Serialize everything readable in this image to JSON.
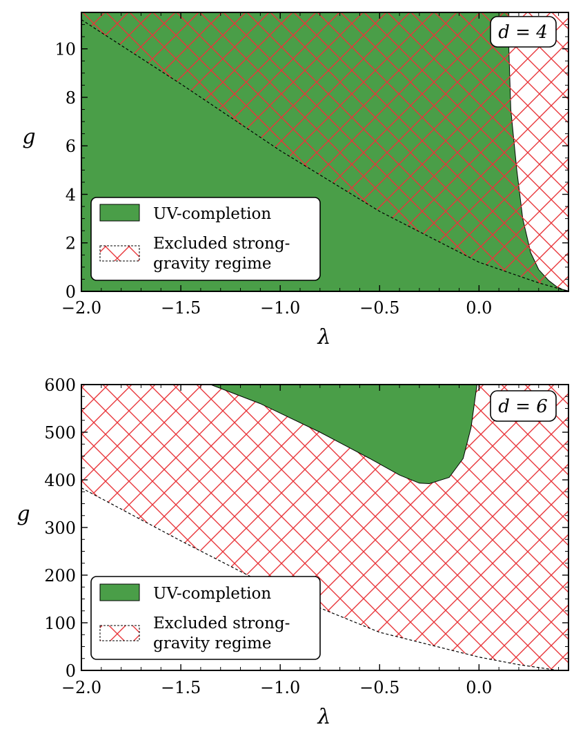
{
  "chart_data": [
    {
      "type": "area",
      "panel_label": "d = 4",
      "xlabel": "λ",
      "ylabel": "g",
      "xlim": [
        -2.0,
        0.45
      ],
      "ylim": [
        0,
        11.5
      ],
      "xticks": [
        -2.0,
        -1.5,
        -1.0,
        -0.5,
        0.0
      ],
      "xtick_labels": [
        "−2.0",
        "−1.5",
        "−1.0",
        "−0.5",
        "0.0"
      ],
      "yticks": [
        0,
        2,
        4,
        6,
        8,
        10
      ],
      "ytick_labels": [
        "0",
        "2",
        "4",
        "6",
        "8",
        "10"
      ],
      "legend": {
        "position": "lower-left",
        "entries": [
          "UV-completion",
          "Excluded strong-",
          "gravity regime"
        ]
      },
      "series": [
        {
          "name": "UV-completion",
          "kind": "filled-region",
          "color": "#4a9e48",
          "boundary": {
            "x": [
              -2.0,
              0.15,
              0.15,
              0.16,
              0.19,
              0.22,
              0.26,
              0.3,
              0.35,
              0.39,
              0.42,
              0.45
            ],
            "y": [
              11.5,
              11.5,
              10.0,
              7.5,
              5.0,
              3.0,
              1.6,
              0.9,
              0.45,
              0.2,
              0.08,
              0.02
            ]
          }
        },
        {
          "name": "Excluded strong-gravity regime",
          "kind": "hatched-region",
          "color": "#e8353a",
          "boundary": {
            "x": [
              -2.0,
              -1.5,
              -1.0,
              -0.5,
              0.0,
              0.3,
              0.45
            ],
            "y": [
              11.2,
              8.55,
              5.8,
              3.3,
              1.2,
              0.35,
              0.0
            ]
          }
        }
      ]
    },
    {
      "type": "area",
      "panel_label": "d = 6",
      "xlabel": "λ",
      "ylabel": "g",
      "xlim": [
        -2.0,
        0.45
      ],
      "ylim": [
        0,
        600
      ],
      "xticks": [
        -2.0,
        -1.5,
        -1.0,
        -0.5,
        0.0
      ],
      "xtick_labels": [
        "−2.0",
        "−1.5",
        "−1.0",
        "−0.5",
        "0.0"
      ],
      "yticks": [
        0,
        100,
        200,
        300,
        400,
        500,
        600
      ],
      "ytick_labels": [
        "0",
        "100",
        "200",
        "300",
        "400",
        "500",
        "600"
      ],
      "legend": {
        "position": "lower-left",
        "entries": [
          "UV-completion",
          "Excluded strong-",
          "gravity regime"
        ]
      },
      "series": [
        {
          "name": "UV-completion",
          "kind": "filled-region",
          "color": "#4a9e48",
          "upper_y": 600,
          "boundary": {
            "x": [
              -1.35,
              -1.1,
              -0.8,
              -0.55,
              -0.4,
              -0.3,
              -0.25,
              -0.15,
              -0.08,
              -0.04,
              -0.01
            ],
            "y": [
              600,
              560,
              500,
              445,
              410,
              393,
              392,
              405,
              445,
              510,
              600
            ]
          }
        },
        {
          "name": "Excluded strong-gravity regime",
          "kind": "hatched-region",
          "color": "#e8353a",
          "boundary": {
            "x": [
              -2.0,
              -1.5,
              -1.0,
              -0.5,
              0.0,
              0.2,
              0.4,
              0.45
            ],
            "y": [
              383,
              272,
              165,
              80,
              28,
              12,
              0,
              0
            ]
          }
        }
      ]
    }
  ]
}
